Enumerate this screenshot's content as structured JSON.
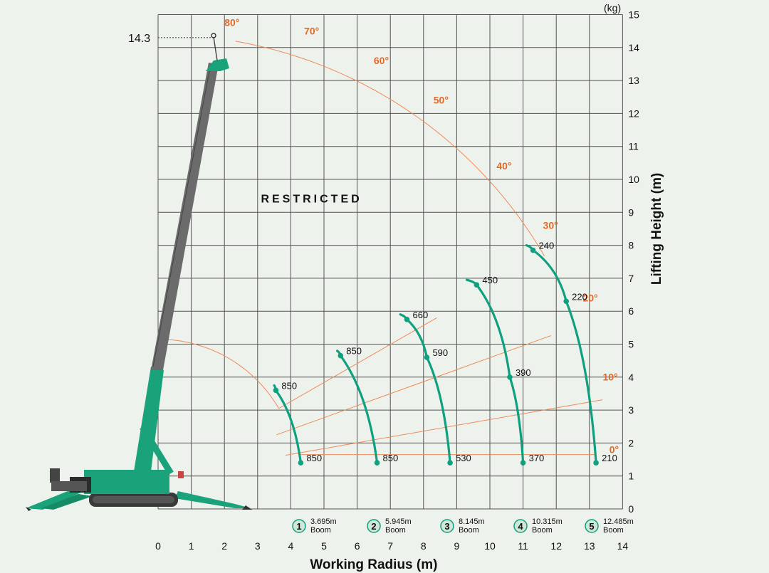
{
  "chart_data": {
    "type": "line",
    "title": "",
    "xlabel": "Working Radius (m)",
    "ylabel": "Lifting Height (m)",
    "unit_label": "(kg)",
    "x_ticks": [
      "0",
      "1",
      "2",
      "3",
      "4",
      "5",
      "6",
      "7",
      "8",
      "9",
      "10",
      "11",
      "12",
      "13",
      "14"
    ],
    "y_ticks": [
      "0",
      "1",
      "2",
      "3",
      "4",
      "5",
      "6",
      "7",
      "8",
      "9",
      "10",
      "11",
      "12",
      "13",
      "14",
      "15"
    ],
    "xlim": [
      0,
      14
    ],
    "ylim": [
      0,
      15
    ],
    "grid": true,
    "max_height_label": "14.3",
    "max_height": 14.3,
    "restricted_label": "RESTRICTED",
    "angles": [
      {
        "label": "80°",
        "deg": 80
      },
      {
        "label": "70°",
        "deg": 70
      },
      {
        "label": "60°",
        "deg": 60
      },
      {
        "label": "50°",
        "deg": 50
      },
      {
        "label": "40°",
        "deg": 40
      },
      {
        "label": "30°",
        "deg": 30
      },
      {
        "label": "20°",
        "deg": 20
      },
      {
        "label": "10°",
        "deg": 10
      },
      {
        "label": "0°",
        "deg": 0
      }
    ],
    "series": [
      {
        "marker": "1",
        "boom_length": "3.695m",
        "boom_word": "Boom",
        "x_range": [
          3.5,
          4.3
        ],
        "points": [
          {
            "x": 3.55,
            "y": 3.6,
            "label": "850"
          },
          {
            "x": 4.3,
            "y": 1.4,
            "label": "850"
          }
        ]
      },
      {
        "marker": "2",
        "boom_length": "5.945m",
        "boom_word": "Boom",
        "x_range": [
          5.4,
          6.6
        ],
        "points": [
          {
            "x": 5.5,
            "y": 4.65,
            "label": "850"
          },
          {
            "x": 6.6,
            "y": 1.4,
            "label": "850"
          }
        ]
      },
      {
        "marker": "3",
        "boom_length": "8.145m",
        "boom_word": "Boom",
        "x_range": [
          7.3,
          8.8
        ],
        "points": [
          {
            "x": 7.5,
            "y": 5.75,
            "label": "660"
          },
          {
            "x": 8.1,
            "y": 4.6,
            "label": "590"
          },
          {
            "x": 8.8,
            "y": 1.4,
            "label": "530"
          }
        ]
      },
      {
        "marker": "4",
        "boom_length": "10.315m",
        "boom_word": "Boom",
        "x_range": [
          9.3,
          11.0
        ],
        "points": [
          {
            "x": 9.6,
            "y": 6.8,
            "label": "450"
          },
          {
            "x": 10.6,
            "y": 4.0,
            "label": "390"
          },
          {
            "x": 11.0,
            "y": 1.4,
            "label": "370"
          }
        ]
      },
      {
        "marker": "5",
        "boom_length": "12.485m",
        "boom_word": "Boom",
        "x_range": [
          11.1,
          13.2
        ],
        "points": [
          {
            "x": 11.3,
            "y": 7.85,
            "label": "240"
          },
          {
            "x": 12.3,
            "y": 6.3,
            "label": "220"
          },
          {
            "x": 13.2,
            "y": 1.4,
            "label": "210"
          }
        ]
      }
    ],
    "colors": {
      "curve": "#0fa080",
      "angle_lines": "#ef8a5a",
      "angle_text": "#e06a2a",
      "crane_body": "#1aa37a",
      "boom_upper": "#6b6b6b",
      "grid": "#555555",
      "background": "#eef2ec"
    }
  }
}
